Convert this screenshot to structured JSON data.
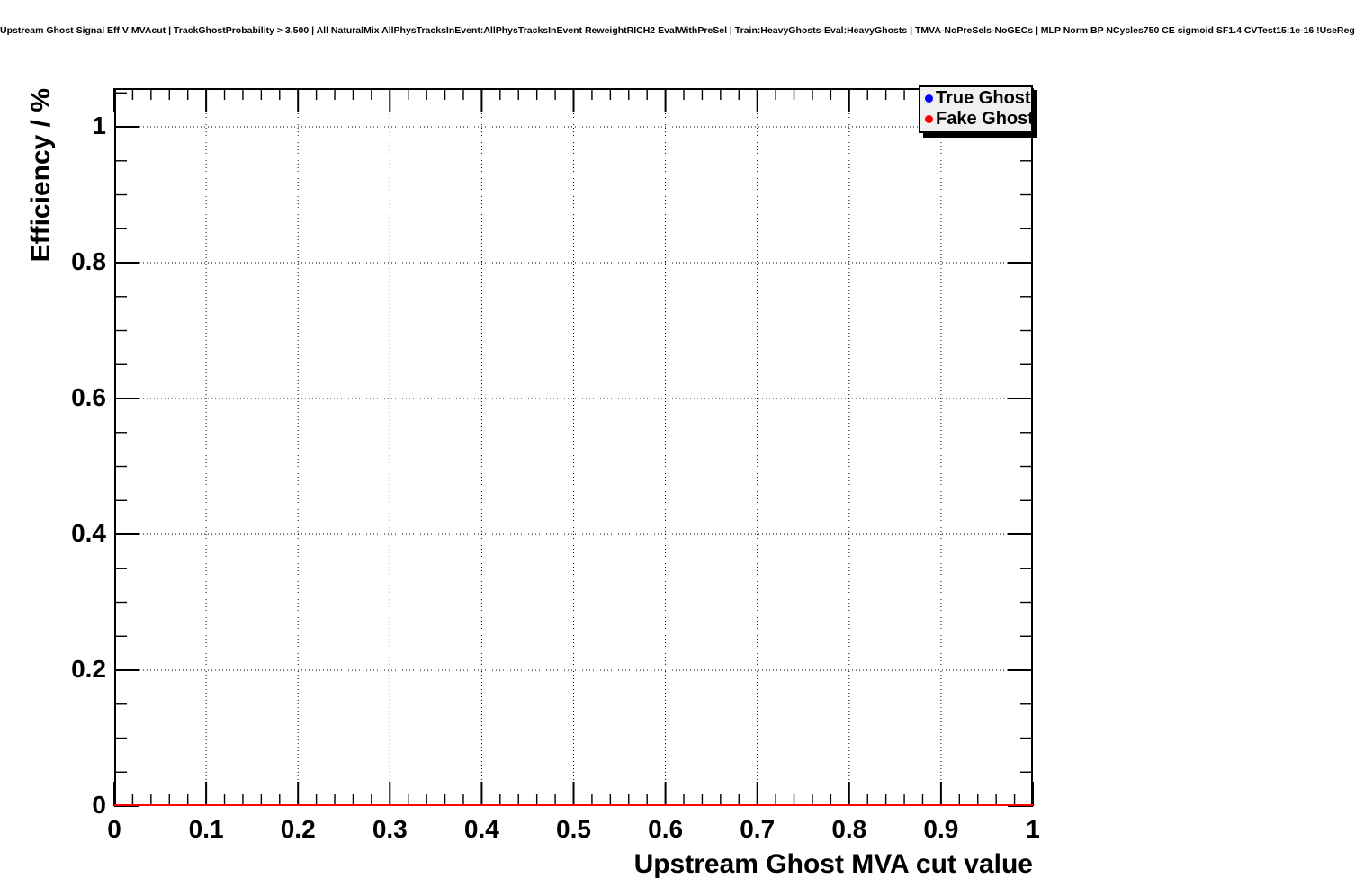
{
  "title": "Upstream Ghost Signal Eff V MVAcut | TrackGhostProbability > 3.500 | All NaturalMix AllPhysTracksInEvent:AllPhysTracksInEvent ReweightRICH2 EvalWithPreSel | Train:HeavyGhosts-Eval:HeavyGhosts | TMVA-NoPreSels-NoGECs | MLP Norm BP NCycles750 CE sigmoid SF1.4 CVTest15:1e-16 !UseReg",
  "chart_data": {
    "type": "line",
    "title": "Upstream Ghost Signal Eff V MVAcut | TrackGhostProbability > 3.500 | All NaturalMix AllPhysTracksInEvent:AllPhysTracksInEvent ReweightRICH2 EvalWithPreSel | Train:HeavyGhosts-Eval:HeavyGhosts | TMVA-NoPreSels-NoGECs | MLP Norm BP NCycles750 CE sigmoid SF1.4 CVTest15:1e-16 !UseReg",
    "xlabel": "Upstream Ghost MVA cut value",
    "ylabel": "Efficiency / %",
    "xlim": [
      0,
      1
    ],
    "ylim": [
      0,
      1.057
    ],
    "grid": true,
    "grid_style": "dotted",
    "x_major_ticks": [
      0,
      0.1,
      0.2,
      0.3,
      0.4,
      0.5,
      0.6,
      0.7,
      0.8,
      0.9,
      1
    ],
    "x_tick_labels": [
      "0",
      "0.1",
      "0.2",
      "0.3",
      "0.4",
      "0.5",
      "0.6",
      "0.7",
      "0.8",
      "0.9",
      "1"
    ],
    "y_major_ticks": [
      0,
      0.2,
      0.4,
      0.6,
      0.8,
      1.0
    ],
    "y_tick_labels": [
      "0",
      "0.2",
      "0.4",
      "0.6",
      "0.8",
      "1"
    ],
    "x_minor_step": 0.02,
    "y_minor_step": 0.05,
    "y_minor_max": 1.05,
    "legend": {
      "position": "top-right",
      "background": "#f0f0f0",
      "entries": [
        {
          "label": "True Ghost",
          "color": "#0000ff",
          "marker": "circle"
        },
        {
          "label": "Fake Ghost",
          "color": "#ff0000",
          "marker": "circle"
        }
      ]
    },
    "series": [
      {
        "name": "True Ghost",
        "color": "#0000ff",
        "x": [],
        "y": [],
        "note": "no visible points in frame"
      },
      {
        "name": "Fake Ghost",
        "color": "#ff0000",
        "x": [
          0,
          1
        ],
        "y": [
          0,
          0
        ]
      }
    ]
  }
}
